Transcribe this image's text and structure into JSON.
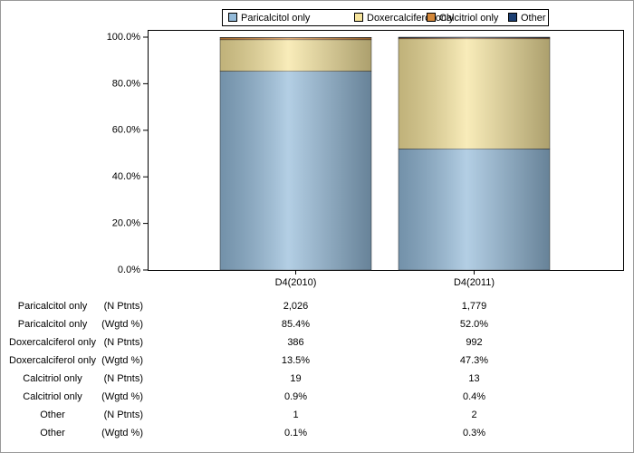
{
  "chart_data": {
    "type": "stacked_bar",
    "categories": [
      "D4(2010)",
      "D4(2011)"
    ],
    "series": [
      {
        "name": "Paricalcitol only",
        "color": "#93bad9",
        "values": [
          85.4,
          52.0
        ]
      },
      {
        "name": "Doxercalciferol only",
        "color": "#f6e49c",
        "values": [
          13.5,
          47.3
        ]
      },
      {
        "name": "Calcitriol only",
        "color": "#d4883a",
        "values": [
          0.9,
          0.4
        ]
      },
      {
        "name": "Other",
        "color": "#1b3f73",
        "values": [
          0.1,
          0.3
        ]
      }
    ],
    "ylim": [
      0,
      100
    ],
    "yticks": [
      {
        "value": 0,
        "label": "0.0%"
      },
      {
        "value": 20,
        "label": "20.0%"
      },
      {
        "value": 40,
        "label": "40.0%"
      },
      {
        "value": 60,
        "label": "60.0%"
      },
      {
        "value": 80,
        "label": "80.0%"
      },
      {
        "value": 100,
        "label": "100.0%"
      }
    ],
    "grid": false,
    "legend": "top"
  },
  "table": {
    "rows": [
      {
        "label": "Paricalcitol only",
        "unit": "(N Ptnts)",
        "cells": [
          "2,026",
          "1,779"
        ]
      },
      {
        "label": "Paricalcitol only",
        "unit": "(Wgtd %)",
        "cells": [
          "85.4%",
          "52.0%"
        ]
      },
      {
        "label": "Doxercalciferol only",
        "unit": "(N Ptnts)",
        "cells": [
          "386",
          "992"
        ]
      },
      {
        "label": "Doxercalciferol only",
        "unit": "(Wgtd %)",
        "cells": [
          "13.5%",
          "47.3%"
        ]
      },
      {
        "label": "Calcitriol only",
        "unit": "(N Ptnts)",
        "cells": [
          "19",
          "13"
        ]
      },
      {
        "label": "Calcitriol only",
        "unit": "(Wgtd %)",
        "cells": [
          "0.9%",
          "0.4%"
        ]
      },
      {
        "label": "Other",
        "unit": "(N Ptnts)",
        "cells": [
          "1",
          "2"
        ]
      },
      {
        "label": "Other",
        "unit": "(Wgtd %)",
        "cells": [
          "0.1%",
          "0.3%"
        ]
      }
    ]
  }
}
